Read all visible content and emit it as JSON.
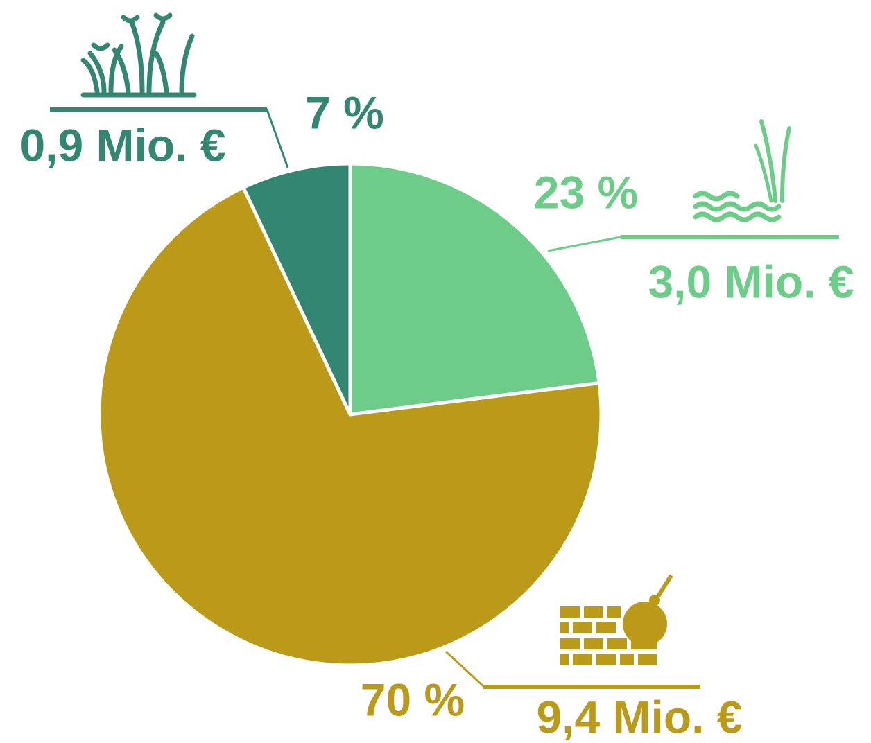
{
  "chart_data": {
    "type": "pie",
    "values": [
      23,
      70,
      7
    ],
    "value_labels": [
      "23 %",
      "70 %",
      "7 %"
    ],
    "amounts": [
      3.0,
      9.4,
      0.9
    ],
    "amount_labels": [
      "3,0 Mio. €",
      "9,4 Mio. €",
      "0,9 Mio. €"
    ],
    "colors": [
      "#6ccc88",
      "#bb9a1a",
      "#338672"
    ]
  }
}
